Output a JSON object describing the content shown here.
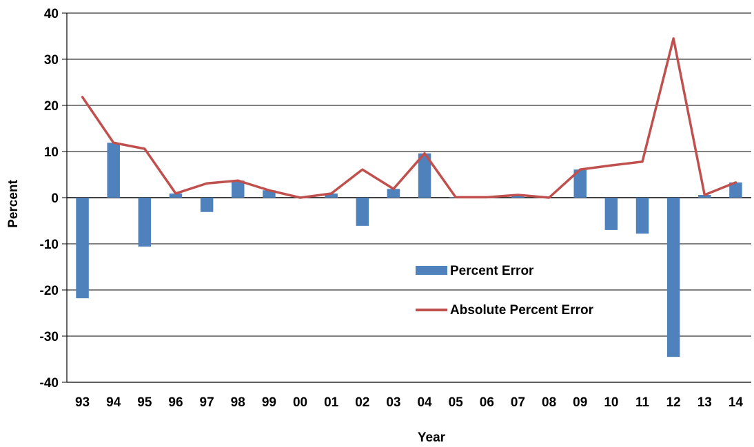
{
  "chart_data": {
    "type": "bar",
    "title": "",
    "xlabel": "Year",
    "ylabel": "Percent",
    "ylim": [
      -40,
      40
    ],
    "yticks": [
      -40,
      -30,
      -20,
      -10,
      0,
      10,
      20,
      30,
      40
    ],
    "grid": true,
    "legend_position": "center-right",
    "categories": [
      "93",
      "94",
      "95",
      "96",
      "97",
      "98",
      "99",
      "00",
      "01",
      "02",
      "03",
      "04",
      "05",
      "06",
      "07",
      "08",
      "09",
      "10",
      "11",
      "12",
      "13",
      "14"
    ],
    "series": [
      {
        "name": "Percent Error",
        "kind": "bar",
        "color": "#4F81BD",
        "values": [
          -21.8,
          11.9,
          -10.6,
          0.9,
          -3.1,
          3.7,
          1.6,
          0.0,
          0.9,
          -6.1,
          1.9,
          9.6,
          0.1,
          0.1,
          0.6,
          0.0,
          6.1,
          -7.0,
          -7.8,
          -34.5,
          0.6,
          3.3
        ]
      },
      {
        "name": "Absolute Percent Error",
        "kind": "line",
        "color": "#C0504D",
        "values": [
          21.8,
          11.9,
          10.6,
          0.9,
          3.1,
          3.7,
          1.6,
          0.0,
          0.9,
          6.1,
          1.9,
          9.6,
          0.1,
          0.1,
          0.6,
          0.0,
          6.1,
          7.0,
          7.8,
          34.5,
          0.6,
          3.3
        ]
      }
    ]
  }
}
